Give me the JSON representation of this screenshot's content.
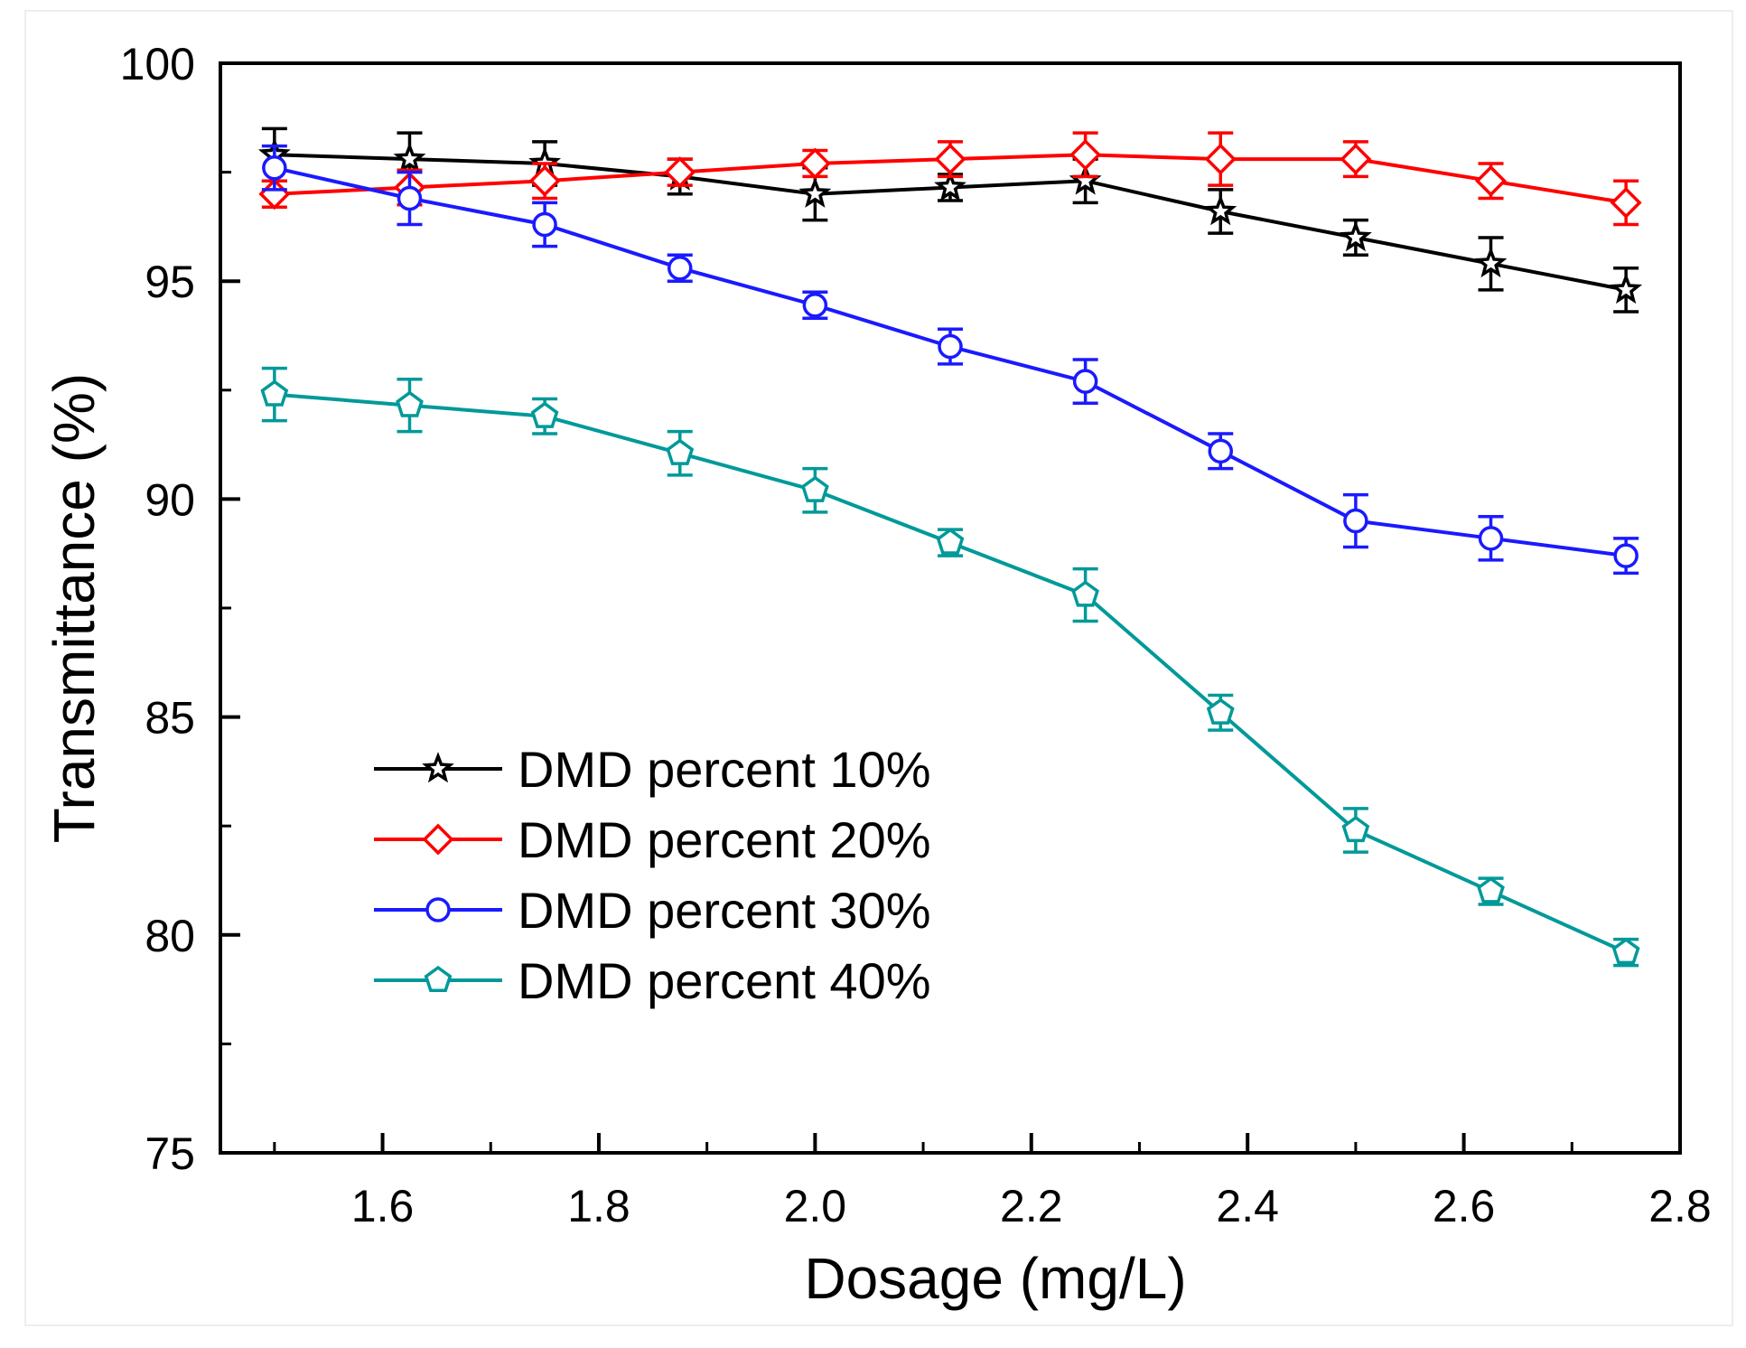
{
  "chart_data": {
    "type": "line",
    "title": "",
    "xlabel": "Dosage (mg/L)",
    "ylabel": "Transmittance (%)",
    "xlim": [
      1.45,
      2.8
    ],
    "ylim": [
      75,
      100
    ],
    "x_ticks": [
      "1.6",
      "1.8",
      "2.0",
      "2.2",
      "2.4",
      "2.6",
      "2.8"
    ],
    "y_ticks": [
      "75",
      "80",
      "85",
      "90",
      "95",
      "100"
    ],
    "legend_position": "center-left",
    "x": [
      1.5,
      1.625,
      1.75,
      1.875,
      2.0,
      2.125,
      2.25,
      2.375,
      2.5,
      2.625,
      2.75
    ],
    "series": [
      {
        "name": "DMD percent 10%",
        "color": "#000000",
        "marker": "star",
        "values": [
          97.9,
          97.8,
          97.7,
          97.4,
          97.0,
          97.15,
          97.3,
          96.6,
          96.0,
          95.4,
          94.8
        ],
        "errors": [
          0.6,
          0.6,
          0.5,
          0.4,
          0.6,
          0.3,
          0.5,
          0.5,
          0.4,
          0.6,
          0.5
        ]
      },
      {
        "name": "DMD percent 20%",
        "color": "#ff0000",
        "marker": "diamond",
        "values": [
          97.0,
          97.15,
          97.3,
          97.5,
          97.7,
          97.8,
          97.9,
          97.8,
          97.8,
          97.3,
          96.8
        ],
        "errors": [
          0.3,
          0.4,
          0.4,
          0.3,
          0.3,
          0.4,
          0.5,
          0.6,
          0.4,
          0.4,
          0.5
        ]
      },
      {
        "name": "DMD percent 30%",
        "color": "#1a1aff",
        "marker": "circle",
        "values": [
          97.6,
          96.9,
          96.3,
          95.3,
          94.45,
          93.5,
          92.7,
          91.1,
          89.5,
          89.1,
          88.7
        ],
        "errors": [
          0.5,
          0.6,
          0.5,
          0.3,
          0.3,
          0.4,
          0.5,
          0.4,
          0.6,
          0.5,
          0.4
        ]
      },
      {
        "name": "DMD percent 40%",
        "color": "#009999",
        "marker": "pentagon",
        "values": [
          92.4,
          92.15,
          91.9,
          91.05,
          90.2,
          89.0,
          87.8,
          85.1,
          82.4,
          81.0,
          79.6
        ],
        "errors": [
          0.6,
          0.6,
          0.4,
          0.5,
          0.5,
          0.3,
          0.6,
          0.4,
          0.5,
          0.3,
          0.3
        ]
      }
    ]
  }
}
